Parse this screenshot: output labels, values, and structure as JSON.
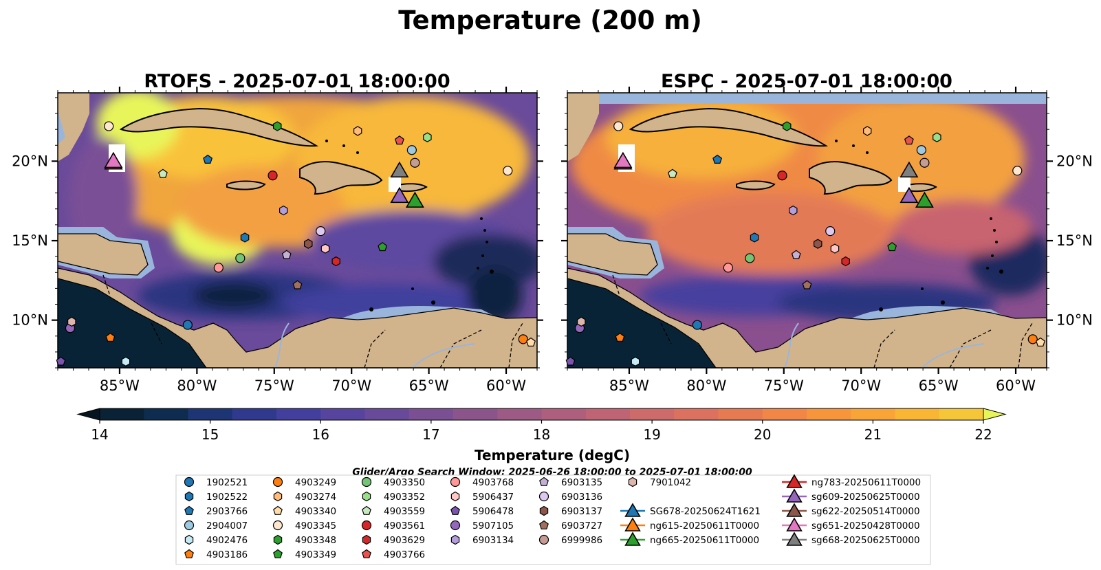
{
  "title": "Temperature (200 m)",
  "colorbar": {
    "label": "Temperature (degC)",
    "min": 14,
    "max": 22,
    "step": 0.5,
    "ticks": [
      14,
      15,
      16,
      17,
      18,
      19,
      20,
      21,
      22
    ],
    "tick_labels": [
      "14",
      "15",
      "16",
      "17",
      "18",
      "19",
      "20",
      "21",
      "22"
    ],
    "colors": [
      "#0a2236",
      "#0e2c4f",
      "#1d3574",
      "#2f3a8f",
      "#423f9e",
      "#56449f",
      "#68499a",
      "#7a4f93",
      "#8b558c",
      "#9c5a85",
      "#ad5f7d",
      "#be6475",
      "#cd6b6b",
      "#dc715f",
      "#e87a52",
      "#f18646",
      "#f6953c",
      "#f9a436",
      "#f9b534",
      "#f5c637"
    ],
    "under_color": "#05141f",
    "over_color": "#e8f55a"
  },
  "search_window": "Glider/Argo Search Window: 2025-06-26 18:00:00 to 2025-07-01 18:00:00",
  "chart_data": [
    {
      "type": "heatmap",
      "title": "RTOFS - 2025-07-01 18:00:00",
      "x_range": [
        -89,
        -58
      ],
      "y_range": [
        7,
        24.3
      ],
      "xticks": [
        -85,
        -80,
        -75,
        -70,
        -65,
        -60
      ],
      "xtick_labels": [
        "85°W",
        "80°W",
        "75°W",
        "70°W",
        "65°W",
        "60°W"
      ],
      "yticks": [
        10,
        15,
        20
      ],
      "ytick_labels": [
        "10°N",
        "15°N",
        "20°N"
      ],
      "ytick_side": "left"
    },
    {
      "type": "heatmap",
      "title": "ESPC - 2025-07-01 18:00:00",
      "x_range": [
        -89,
        -58
      ],
      "y_range": [
        7,
        24.3
      ],
      "xticks": [
        -85,
        -80,
        -75,
        -70,
        -65,
        -60
      ],
      "xtick_labels": [
        "85°W",
        "80°W",
        "75°W",
        "70°W",
        "65°W",
        "60°W"
      ],
      "yticks": [
        10,
        15,
        20
      ],
      "ytick_labels": [
        "10°N",
        "15°N",
        "20°N"
      ],
      "ytick_side": "right"
    }
  ],
  "floats": [
    {
      "id": "1902521",
      "color": "#1f77b4",
      "marker": "circle",
      "lon": -80.6,
      "lat": 9.7
    },
    {
      "id": "1902522",
      "color": "#1f77b4",
      "marker": "hexagon",
      "lon": -76.9,
      "lat": 15.2
    },
    {
      "id": "2903766",
      "color": "#1f77b4",
      "marker": "pentagon",
      "lon": -79.3,
      "lat": 20.1
    },
    {
      "id": "2904007",
      "color": "#9ecae1",
      "marker": "circle",
      "lon": -66.1,
      "lat": 20.7
    },
    {
      "id": "4902476",
      "color": "#c6ebf5",
      "marker": "hexagon",
      "lon": -84.6,
      "lat": 7.4
    },
    {
      "id": "4903186",
      "color": "#ff7f0e",
      "marker": "pentagon",
      "lon": -85.6,
      "lat": 8.9
    },
    {
      "id": "4903249",
      "color": "#ff7f0e",
      "marker": "circle",
      "lon": -58.9,
      "lat": 8.8
    },
    {
      "id": "4903274",
      "color": "#ffbb78",
      "marker": "hexagon",
      "lon": -69.6,
      "lat": 21.9
    },
    {
      "id": "4903340",
      "color": "#ffdca8",
      "marker": "pentagon",
      "lon": -58.4,
      "lat": 8.6
    },
    {
      "id": "4903345",
      "color": "#ffe6cf",
      "marker": "circle",
      "lon": -59.9,
      "lat": 19.4
    },
    {
      "id": "4903348",
      "color": "#2ca02c",
      "marker": "hexagon",
      "lon": -74.8,
      "lat": 22.2
    },
    {
      "id": "4903349",
      "color": "#2ca02c",
      "marker": "pentagon",
      "lon": -68.0,
      "lat": 14.6
    },
    {
      "id": "4903350",
      "color": "#74c476",
      "marker": "circle",
      "lon": -77.2,
      "lat": 13.9
    },
    {
      "id": "4903352",
      "color": "#98df8a",
      "marker": "hexagon",
      "lon": -65.1,
      "lat": 21.5
    },
    {
      "id": "4903559",
      "color": "#c7e9c0",
      "marker": "pentagon",
      "lon": -82.2,
      "lat": 19.2
    },
    {
      "id": "4903561",
      "color": "#d62728",
      "marker": "circle",
      "lon": -75.1,
      "lat": 19.1
    },
    {
      "id": "4903629",
      "color": "#d62728",
      "marker": "hexagon",
      "lon": -71.0,
      "lat": 13.7
    },
    {
      "id": "4903766",
      "color": "#e8534f",
      "marker": "pentagon",
      "lon": -66.9,
      "lat": 21.3
    },
    {
      "id": "4903768",
      "color": "#ff9896",
      "marker": "circle",
      "lon": -78.6,
      "lat": 13.3
    },
    {
      "id": "5906437",
      "color": "#ffc7c5",
      "marker": "hexagon",
      "lon": -71.7,
      "lat": 14.5
    },
    {
      "id": "5906478",
      "color": "#7b54b0",
      "marker": "pentagon",
      "lon": -88.8,
      "lat": 7.4
    },
    {
      "id": "5907105",
      "color": "#9467bd",
      "marker": "circle",
      "lon": -88.2,
      "lat": 9.5
    },
    {
      "id": "6903134",
      "color": "#b39ddb",
      "marker": "hexagon",
      "lon": -74.4,
      "lat": 16.9
    },
    {
      "id": "6903135",
      "color": "#c5b0d5",
      "marker": "pentagon",
      "lon": -74.2,
      "lat": 14.1
    },
    {
      "id": "6903136",
      "color": "#ddc8f0",
      "marker": "circle",
      "lon": -72.0,
      "lat": 15.6
    },
    {
      "id": "6903137",
      "color": "#8c564b",
      "marker": "hexagon",
      "lon": -72.8,
      "lat": 14.8
    },
    {
      "id": "6903727",
      "color": "#a0705d",
      "marker": "pentagon",
      "lon": -73.5,
      "lat": 12.2
    },
    {
      "id": "6999986",
      "color": "#c49c94",
      "marker": "circle",
      "lon": -65.9,
      "lat": 19.9
    },
    {
      "id": "7901042",
      "color": "#dfb6ab",
      "marker": "hexagon",
      "lon": -88.1,
      "lat": 9.9
    }
  ],
  "float_extra": [
    {
      "id": "1902522b",
      "color": "#ffe6cf",
      "marker": "circle",
      "lon": -85.7,
      "lat": 22.2
    }
  ],
  "gliders": [
    {
      "id": "SG678-20250624T1621",
      "color": "#1f77b4",
      "lon": null,
      "lat": null
    },
    {
      "id": "ng615-20250611T0000",
      "color": "#ff7f0e",
      "lon": null,
      "lat": null
    },
    {
      "id": "ng665-20250611T0000",
      "color": "#2ca02c",
      "lon": -65.9,
      "lat": 17.5
    },
    {
      "id": "ng783-20250611T0000",
      "color": "#d62728",
      "lon": null,
      "lat": null
    },
    {
      "id": "sg609-20250625T0000",
      "color": "#9467bd",
      "lon": -66.9,
      "lat": 17.8
    },
    {
      "id": "sg622-20250514T0000",
      "color": "#8c564b",
      "lon": -85.4,
      "lat": 19.9
    },
    {
      "id": "sg651-20250428T0000",
      "color": "#e377c2",
      "lon": -85.4,
      "lat": 20.0
    },
    {
      "id": "sg668-20250625T0000",
      "color": "#7f7f7f",
      "lon": -66.9,
      "lat": 19.4
    }
  ],
  "colors": {
    "land": "#d2b48c",
    "shallow": "#9ab5dc",
    "coast": "#000000",
    "deep_pacific": "#082336"
  }
}
